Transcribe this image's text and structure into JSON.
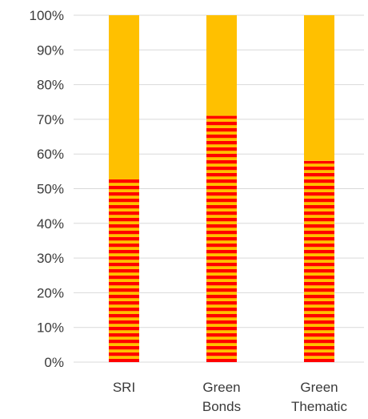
{
  "chart_data": {
    "type": "bar",
    "stacked": true,
    "normalized_percent": true,
    "categories": [
      "SRI",
      "Green Bonds",
      "Green Thematic"
    ],
    "category_label_lines": [
      [
        "SRI"
      ],
      [
        "Green",
        "Bonds"
      ],
      [
        "Green",
        "Thematic"
      ]
    ],
    "series": [
      {
        "values": [
          53,
          71,
          58
        ],
        "color": "#ff0000",
        "secondary_color": "#ffc000",
        "pattern": "horizontal-stripes"
      },
      {
        "values": [
          47,
          29,
          42
        ],
        "color": "#ffc000",
        "pattern": "solid"
      }
    ],
    "ylim": [
      0,
      100
    ],
    "y_ticks": [
      0,
      10,
      20,
      30,
      40,
      50,
      60,
      70,
      80,
      90,
      100
    ],
    "y_tick_labels": [
      "0%",
      "10%",
      "20%",
      "30%",
      "40%",
      "50%",
      "60%",
      "70%",
      "80%",
      "90%",
      "100%"
    ],
    "grid": true,
    "legend": "none",
    "title": "",
    "xlabel": "",
    "ylabel": ""
  },
  "colors": {
    "grid": "#d9d9d9",
    "text": "#3a3a3a"
  }
}
